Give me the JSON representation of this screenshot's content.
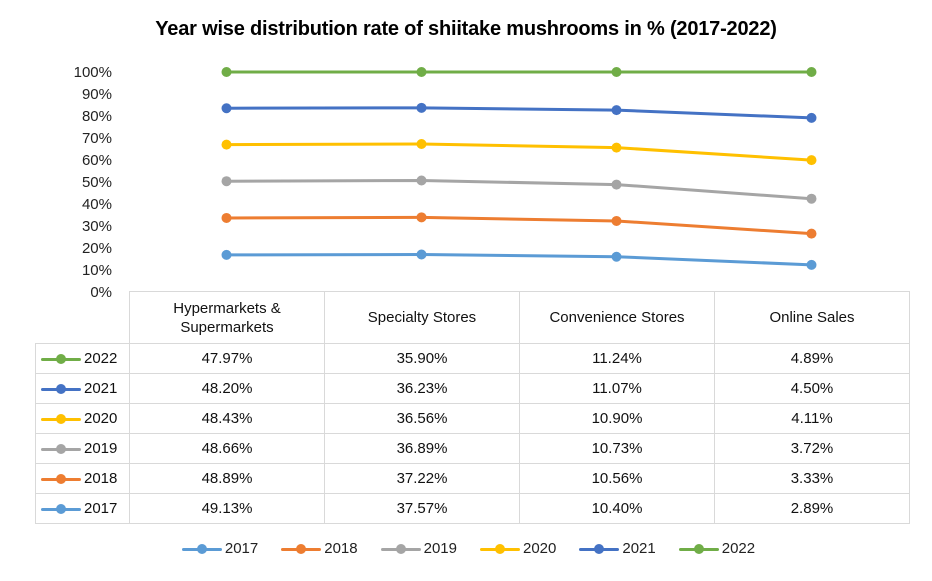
{
  "chart_data": {
    "type": "line",
    "subtype": "100% stacked line with markers and data table",
    "title": "Year wise distribution rate of shiitake mushrooms in % (2017-2022)",
    "xlabel": "",
    "ylabel": "",
    "ylim": [
      0,
      100
    ],
    "yticks": [
      "0%",
      "10%",
      "20%",
      "30%",
      "40%",
      "50%",
      "60%",
      "70%",
      "80%",
      "90%",
      "100%"
    ],
    "grid": false,
    "legend_position": "bottom",
    "categories": [
      "Hypermarkets & Supermarkets",
      "Specialty Stores",
      "Convenience Stores",
      "Online Sales"
    ],
    "category_labels": [
      [
        "Hypermarkets &",
        "Supermarkets"
      ],
      [
        "Specialty Stores"
      ],
      [
        "Convenience Stores"
      ],
      [
        "Online Sales"
      ]
    ],
    "series": [
      {
        "name": "2017",
        "color": "#5b9bd5",
        "values": [
          "49.13%",
          "37.57%",
          "10.40%",
          "2.89%"
        ],
        "numeric": [
          49.13,
          37.57,
          10.4,
          2.89
        ]
      },
      {
        "name": "2018",
        "color": "#ed7d31",
        "values": [
          "48.89%",
          "37.22%",
          "10.56%",
          "3.33%"
        ],
        "numeric": [
          48.89,
          37.22,
          10.56,
          3.33
        ]
      },
      {
        "name": "2019",
        "color": "#a5a5a5",
        "values": [
          "48.66%",
          "36.89%",
          "10.73%",
          "3.72%"
        ],
        "numeric": [
          48.66,
          36.89,
          10.73,
          3.72
        ]
      },
      {
        "name": "2020",
        "color": "#ffc000",
        "values": [
          "48.43%",
          "36.56%",
          "10.90%",
          "4.11%"
        ],
        "numeric": [
          48.43,
          36.56,
          10.9,
          4.11
        ]
      },
      {
        "name": "2021",
        "color": "#4472c4",
        "values": [
          "48.20%",
          "36.23%",
          "11.07%",
          "4.50%"
        ],
        "numeric": [
          48.2,
          36.23,
          11.07,
          4.5
        ]
      },
      {
        "name": "2022",
        "color": "#70ad47",
        "values": [
          "47.97%",
          "35.90%",
          "11.24%",
          "4.89%"
        ],
        "numeric": [
          47.97,
          35.9,
          11.24,
          4.89
        ]
      }
    ],
    "table_row_order": [
      "2022",
      "2021",
      "2020",
      "2019",
      "2018",
      "2017"
    ]
  }
}
